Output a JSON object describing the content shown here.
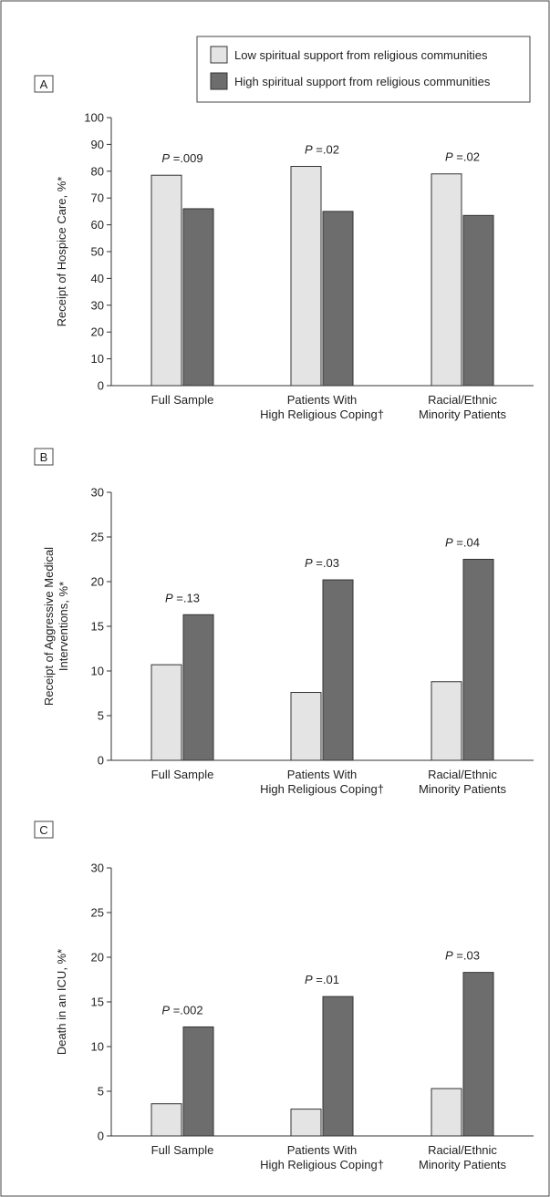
{
  "legend": {
    "low_label": "Low spiritual support from religious communities",
    "high_label": "High spiritual support from religious communities"
  },
  "colors": {
    "low": "#e4e4e4",
    "high": "#6d6d6d",
    "outline": "#333333"
  },
  "chart_data": [
    {
      "panel": "A",
      "type": "bar",
      "categories": [
        [
          "Full Sample"
        ],
        [
          "Patients With",
          "High Religious Coping†"
        ],
        [
          "Racial/Ethnic",
          "Minority Patients"
        ]
      ],
      "ylabel": "Receipt of Hospice Care, %*",
      "ylim": [
        0,
        100
      ],
      "yticks": [
        0,
        10,
        20,
        30,
        40,
        50,
        60,
        70,
        80,
        90,
        100
      ],
      "series": [
        {
          "name": "Low spiritual support from religious communities",
          "values": [
            78.5,
            81.8,
            79.0
          ]
        },
        {
          "name": "High spiritual support from religious communities",
          "values": [
            66.0,
            65.0,
            63.5
          ]
        }
      ],
      "p_values": [
        ".009",
        ".02",
        ".02"
      ]
    },
    {
      "panel": "B",
      "type": "bar",
      "categories": [
        [
          "Full Sample"
        ],
        [
          "Patients With",
          "High Religious Coping†"
        ],
        [
          "Racial/Ethnic",
          "Minority Patients"
        ]
      ],
      "ylabel": [
        "Receipt of Aggressive Medical",
        "Interventions, %*"
      ],
      "ylim": [
        0,
        30
      ],
      "yticks": [
        0,
        5,
        10,
        15,
        20,
        25,
        30
      ],
      "series": [
        {
          "name": "Low spiritual support from religious communities",
          "values": [
            10.7,
            7.6,
            8.8
          ]
        },
        {
          "name": "High spiritual support from religious communities",
          "values": [
            16.3,
            20.2,
            22.5
          ]
        }
      ],
      "p_values": [
        ".13",
        ".03",
        ".04"
      ]
    },
    {
      "panel": "C",
      "type": "bar",
      "categories": [
        [
          "Full Sample"
        ],
        [
          "Patients With",
          "High Religious Coping†"
        ],
        [
          "Racial/Ethnic",
          "Minority Patients"
        ]
      ],
      "ylabel": "Death in an ICU, %*",
      "ylim": [
        0,
        30
      ],
      "yticks": [
        0,
        5,
        10,
        15,
        20,
        25,
        30
      ],
      "series": [
        {
          "name": "Low spiritual support from religious communities",
          "values": [
            3.6,
            3.0,
            5.3
          ]
        },
        {
          "name": "High spiritual support from religious communities",
          "values": [
            12.2,
            15.6,
            18.3
          ]
        }
      ],
      "p_values": [
        ".002",
        ".01",
        ".03"
      ]
    }
  ]
}
